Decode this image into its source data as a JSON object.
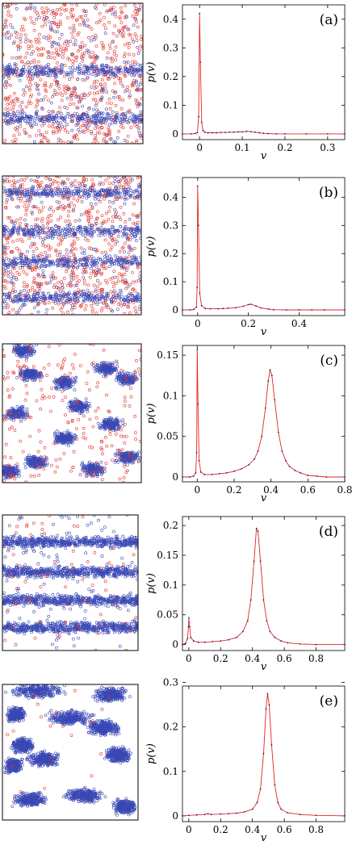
{
  "chart_data": [
    {
      "type": "line",
      "panel_label": "(a)",
      "xlabel": "v",
      "ylabel": "p(v)",
      "xlim": [
        -0.04,
        0.34
      ],
      "ylim": [
        -0.02,
        0.45
      ],
      "xticks": [
        0,
        0.1,
        0.2,
        0.3
      ],
      "xtick_labels": [
        "0",
        "0.1",
        "0.2",
        "0.3"
      ],
      "yticks": [
        0,
        0.1,
        0.2,
        0.3,
        0.4
      ],
      "ytick_labels": [
        "0",
        "0.1",
        "0.2",
        "0.3",
        "0.4"
      ],
      "series": [
        {
          "color": "#e8231f",
          "marker_color": "#1a237e",
          "points": [
            [
              -0.04,
              0
            ],
            [
              -0.02,
              0
            ],
            [
              -0.01,
              0.001
            ],
            [
              -0.005,
              0.005
            ],
            [
              -0.002,
              0.06
            ],
            [
              0,
              0.42
            ],
            [
              0.002,
              0.25
            ],
            [
              0.005,
              0.04
            ],
            [
              0.008,
              0.012
            ],
            [
              0.012,
              0.006
            ],
            [
              0.02,
              0.004
            ],
            [
              0.03,
              0.004
            ],
            [
              0.04,
              0.004
            ],
            [
              0.05,
              0.005
            ],
            [
              0.06,
              0.005
            ],
            [
              0.07,
              0.006
            ],
            [
              0.08,
              0.006
            ],
            [
              0.09,
              0.007
            ],
            [
              0.1,
              0.007
            ],
            [
              0.11,
              0.009
            ],
            [
              0.12,
              0.008
            ],
            [
              0.13,
              0.006
            ],
            [
              0.14,
              0.004
            ],
            [
              0.15,
              0.002
            ],
            [
              0.16,
              0.001
            ],
            [
              0.18,
              0
            ],
            [
              0.2,
              0
            ],
            [
              0.25,
              0
            ],
            [
              0.3,
              0
            ],
            [
              0.34,
              0
            ]
          ]
        }
      ]
    },
    {
      "type": "line",
      "panel_label": "(b)",
      "xlabel": "v",
      "ylabel": "p(v)",
      "xlim": [
        -0.06,
        0.58
      ],
      "ylim": [
        -0.02,
        0.47
      ],
      "xticks": [
        0,
        0.2,
        0.4
      ],
      "xtick_labels": [
        "0",
        "0.2",
        "0.4"
      ],
      "yticks": [
        0,
        0.1,
        0.2,
        0.3,
        0.4
      ],
      "ytick_labels": [
        "0",
        "0.1",
        "0.2",
        "0.3",
        "0.4"
      ],
      "series": [
        {
          "color": "#e8231f",
          "marker_color": "#1a237e",
          "points": [
            [
              -0.06,
              0
            ],
            [
              -0.03,
              0
            ],
            [
              -0.015,
              0.002
            ],
            [
              -0.005,
              0.01
            ],
            [
              -0.002,
              0.08
            ],
            [
              0,
              0.44
            ],
            [
              0.003,
              0.3
            ],
            [
              0.008,
              0.06
            ],
            [
              0.015,
              0.015
            ],
            [
              0.03,
              0.005
            ],
            [
              0.05,
              0.004
            ],
            [
              0.08,
              0.004
            ],
            [
              0.1,
              0.005
            ],
            [
              0.12,
              0.006
            ],
            [
              0.15,
              0.008
            ],
            [
              0.18,
              0.013
            ],
            [
              0.2,
              0.019
            ],
            [
              0.21,
              0.02
            ],
            [
              0.23,
              0.014
            ],
            [
              0.25,
              0.007
            ],
            [
              0.28,
              0.003
            ],
            [
              0.3,
              0.001
            ],
            [
              0.35,
              0
            ],
            [
              0.4,
              0
            ],
            [
              0.45,
              0
            ],
            [
              0.5,
              0
            ],
            [
              0.58,
              0
            ]
          ]
        }
      ]
    },
    {
      "type": "line",
      "panel_label": "(c)",
      "xlabel": "v",
      "ylabel": "p(v)",
      "xlim": [
        -0.08,
        0.8
      ],
      "ylim": [
        -0.006,
        0.162
      ],
      "xticks": [
        0,
        0.2,
        0.4,
        0.6,
        0.8
      ],
      "xtick_labels": [
        "0",
        "0.2",
        "0.4",
        "0.6",
        "0.8"
      ],
      "yticks": [
        0,
        0.05,
        0.1,
        0.15
      ],
      "ytick_labels": [
        "0",
        "0.05",
        "0.1",
        "0.15"
      ],
      "series": [
        {
          "color": "#e8231f",
          "marker_color": "#1a237e",
          "points": [
            [
              -0.08,
              0
            ],
            [
              -0.04,
              0
            ],
            [
              -0.02,
              0.001
            ],
            [
              -0.008,
              0.005
            ],
            [
              -0.003,
              0.03
            ],
            [
              0,
              0.157
            ],
            [
              0.004,
              0.09
            ],
            [
              0.01,
              0.02
            ],
            [
              0.02,
              0.006
            ],
            [
              0.04,
              0.003
            ],
            [
              0.08,
              0.003
            ],
            [
              0.12,
              0.004
            ],
            [
              0.16,
              0.005
            ],
            [
              0.2,
              0.007
            ],
            [
              0.24,
              0.01
            ],
            [
              0.28,
              0.015
            ],
            [
              0.31,
              0.022
            ],
            [
              0.33,
              0.032
            ],
            [
              0.35,
              0.05
            ],
            [
              0.37,
              0.085
            ],
            [
              0.385,
              0.118
            ],
            [
              0.395,
              0.132
            ],
            [
              0.405,
              0.125
            ],
            [
              0.42,
              0.095
            ],
            [
              0.44,
              0.055
            ],
            [
              0.46,
              0.032
            ],
            [
              0.48,
              0.02
            ],
            [
              0.5,
              0.013
            ],
            [
              0.53,
              0.008
            ],
            [
              0.56,
              0.005
            ],
            [
              0.6,
              0.002
            ],
            [
              0.65,
              0.001
            ],
            [
              0.7,
              0
            ],
            [
              0.8,
              0
            ]
          ]
        }
      ]
    },
    {
      "type": "line",
      "panel_label": "(d)",
      "xlabel": "v",
      "ylabel": "p(v)",
      "xlim": [
        -0.04,
        0.98
      ],
      "ylim": [
        -0.01,
        0.215
      ],
      "xticks": [
        0,
        0.2,
        0.4,
        0.6,
        0.8
      ],
      "xtick_labels": [
        "0",
        "0.2",
        "0.4",
        "0.6",
        "0.8"
      ],
      "yticks": [
        0,
        0.05,
        0.1,
        0.15,
        0.2
      ],
      "ytick_labels": [
        "0",
        "0.05",
        "0.1",
        "0.15",
        "0.2"
      ],
      "series": [
        {
          "color": "#e8231f",
          "marker_color": "#1a237e",
          "points": [
            [
              -0.04,
              0
            ],
            [
              -0.02,
              0.002
            ],
            [
              -0.008,
              0.01
            ],
            [
              -0.002,
              0.03
            ],
            [
              0,
              0.045
            ],
            [
              0.005,
              0.03
            ],
            [
              0.012,
              0.012
            ],
            [
              0.03,
              0.006
            ],
            [
              0.06,
              0.004
            ],
            [
              0.1,
              0.004
            ],
            [
              0.15,
              0.005
            ],
            [
              0.2,
              0.006
            ],
            [
              0.25,
              0.008
            ],
            [
              0.3,
              0.012
            ],
            [
              0.34,
              0.022
            ],
            [
              0.37,
              0.04
            ],
            [
              0.39,
              0.075
            ],
            [
              0.41,
              0.14
            ],
            [
              0.425,
              0.195
            ],
            [
              0.435,
              0.19
            ],
            [
              0.45,
              0.14
            ],
            [
              0.47,
              0.075
            ],
            [
              0.49,
              0.04
            ],
            [
              0.51,
              0.022
            ],
            [
              0.54,
              0.012
            ],
            [
              0.58,
              0.006
            ],
            [
              0.62,
              0.003
            ],
            [
              0.7,
              0.001
            ],
            [
              0.8,
              0
            ],
            [
              0.98,
              0
            ]
          ]
        }
      ]
    },
    {
      "type": "line",
      "panel_label": "(e)",
      "xlabel": "v",
      "ylabel": "p(v)",
      "xlim": [
        -0.04,
        0.98
      ],
      "ylim": [
        -0.013,
        0.292
      ],
      "xticks": [
        0,
        0.2,
        0.4,
        0.6,
        0.8
      ],
      "xtick_labels": [
        "0",
        "0.2",
        "0.4",
        "0.6",
        "0.8"
      ],
      "yticks": [
        0,
        0.1,
        0.2,
        0.3
      ],
      "ytick_labels": [
        "0",
        "0.1",
        "0.2",
        "0.3"
      ],
      "series": [
        {
          "color": "#e8231f",
          "marker_color": "#1a237e",
          "points": [
            [
              -0.04,
              0
            ],
            [
              0,
              0.001
            ],
            [
              0.05,
              0.002
            ],
            [
              0.1,
              0.003
            ],
            [
              0.12,
              0.005
            ],
            [
              0.14,
              0.003
            ],
            [
              0.2,
              0.004
            ],
            [
              0.25,
              0.005
            ],
            [
              0.3,
              0.006
            ],
            [
              0.35,
              0.009
            ],
            [
              0.4,
              0.015
            ],
            [
              0.43,
              0.03
            ],
            [
              0.45,
              0.06
            ],
            [
              0.47,
              0.14
            ],
            [
              0.485,
              0.24
            ],
            [
              0.495,
              0.275
            ],
            [
              0.505,
              0.25
            ],
            [
              0.52,
              0.16
            ],
            [
              0.54,
              0.07
            ],
            [
              0.56,
              0.03
            ],
            [
              0.58,
              0.015
            ],
            [
              0.62,
              0.007
            ],
            [
              0.7,
              0.003
            ],
            [
              0.8,
              0.001
            ],
            [
              0.98,
              0
            ]
          ]
        }
      ]
    }
  ],
  "scatter_panels": [
    {
      "mode": "mixed_stripes",
      "seed": 11,
      "blue_bands": [
        0.48,
        0.82
      ],
      "red_fraction": 0.55
    },
    {
      "mode": "mixed_stripes",
      "seed": 23,
      "blue_bands": [
        0.12,
        0.4,
        0.62,
        0.88
      ],
      "red_fraction": 0.45
    },
    {
      "mode": "clusters",
      "seed": 37,
      "red_fraction": 0.08
    },
    {
      "mode": "dense_stripes",
      "seed": 41,
      "blue_bands": [
        0.2,
        0.42,
        0.63,
        0.83
      ],
      "red_fraction": 0.04
    },
    {
      "mode": "blobs",
      "seed": 53,
      "red_fraction": 0.01
    }
  ],
  "colors": {
    "red_particle": "#e0322b",
    "blue_particle": "#3a48b5",
    "curve": "#e8231f",
    "marker": "#1a237e"
  }
}
